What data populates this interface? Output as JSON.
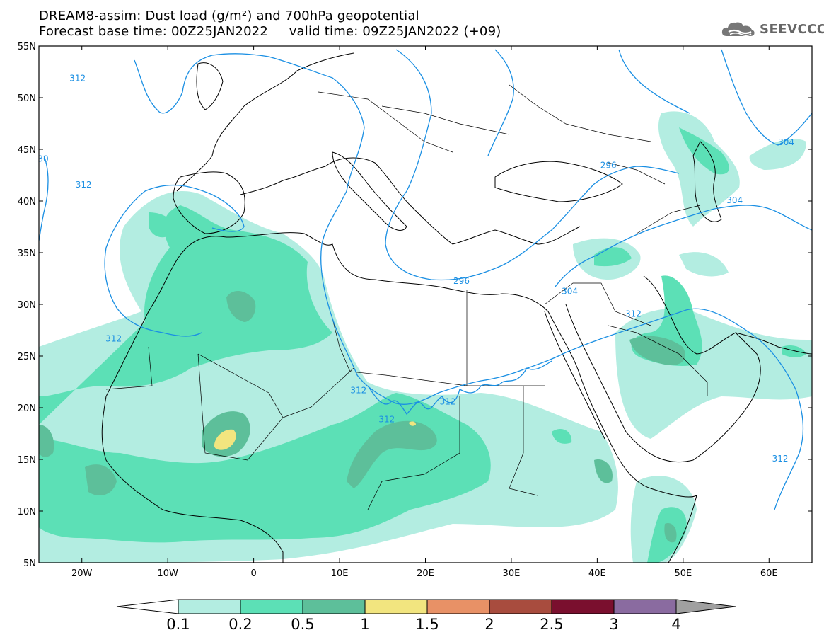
{
  "title": {
    "line1": "DREAM8-assim: Dust load (g/m²) and 700hPa geopotential",
    "line2": "Forecast base time: 00Z25JAN2022     valid time: 09Z25JAN2022 (+09)"
  },
  "logo": {
    "text": "SEEVCCC",
    "icon": "cloud-icon"
  },
  "map": {
    "lon_range": [
      -25,
      65
    ],
    "lat_range": [
      5,
      55
    ],
    "lat_ticks": [
      {
        "value": 55,
        "label": "55N"
      },
      {
        "value": 50,
        "label": "50N"
      },
      {
        "value": 45,
        "label": "45N"
      },
      {
        "value": 40,
        "label": "40N"
      },
      {
        "value": 35,
        "label": "35N"
      },
      {
        "value": 30,
        "label": "30N"
      },
      {
        "value": 25,
        "label": "25N"
      },
      {
        "value": 20,
        "label": "20N"
      },
      {
        "value": 15,
        "label": "15N"
      },
      {
        "value": 10,
        "label": "10N"
      },
      {
        "value": 5,
        "label": "5N"
      }
    ],
    "lon_ticks": [
      {
        "value": -20,
        "label": "20W"
      },
      {
        "value": -10,
        "label": "10W"
      },
      {
        "value": 0,
        "label": "0"
      },
      {
        "value": 10,
        "label": "10E"
      },
      {
        "value": 20,
        "label": "20E"
      },
      {
        "value": 30,
        "label": "30E"
      },
      {
        "value": 40,
        "label": "40E"
      },
      {
        "value": 50,
        "label": "50E"
      },
      {
        "value": 60,
        "label": "60E"
      }
    ],
    "contour_color": "#1a8fe3",
    "contour_labels": [
      {
        "text": "312",
        "lon": -20.5,
        "lat": 51.8
      },
      {
        "text": "312",
        "lon": -19.8,
        "lat": 41.5
      },
      {
        "text": "312",
        "lon": -16.3,
        "lat": 26.6
      },
      {
        "text": "312",
        "lon": 12.2,
        "lat": 21.6
      },
      {
        "text": "312",
        "lon": 15.5,
        "lat": 18.8
      },
      {
        "text": "312",
        "lon": 22.6,
        "lat": 20.5
      },
      {
        "text": "312",
        "lon": 44.2,
        "lat": 29.0
      },
      {
        "text": "312",
        "lon": 61.3,
        "lat": 15.0
      },
      {
        "text": "296",
        "lon": 24.2,
        "lat": 32.2
      },
      {
        "text": "296",
        "lon": 41.3,
        "lat": 43.4
      },
      {
        "text": "304",
        "lon": 36.8,
        "lat": 31.2
      },
      {
        "text": "304",
        "lon": 56.0,
        "lat": 40.0
      },
      {
        "text": "304",
        "lon": 62.0,
        "lat": 45.6
      },
      {
        "text": "30",
        "lon": -24.5,
        "lat": 44.0
      }
    ]
  },
  "colorbar": {
    "labels": [
      "0.1",
      "0.2",
      "0.5",
      "1",
      "1.5",
      "2",
      "2.5",
      "3",
      "4"
    ],
    "colors": [
      "#b3ede1",
      "#5ce0b6",
      "#5dbf9a",
      "#f2e57f",
      "#e89166",
      "#a84c3e",
      "#7a0f2e",
      "#8a6ba0"
    ],
    "left_arrow_color": "#ffffff",
    "right_arrow_color": "#a0a0a0"
  }
}
